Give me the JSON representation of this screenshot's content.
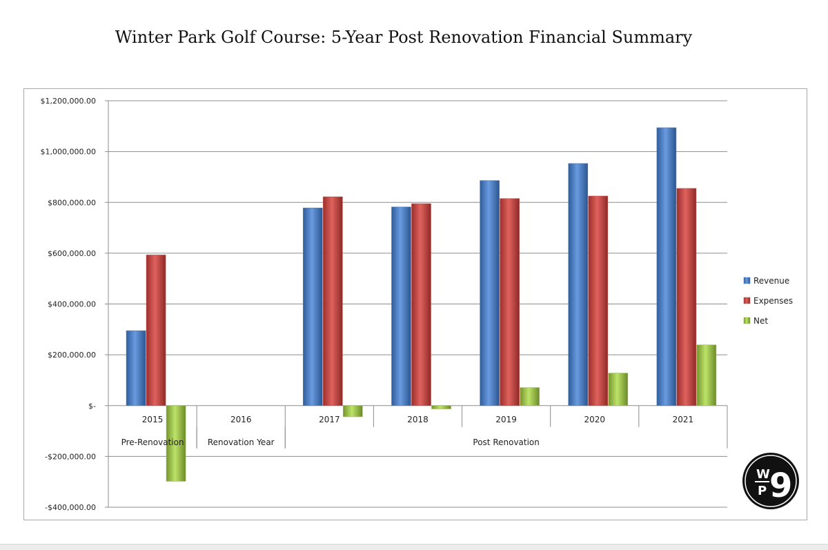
{
  "title": "Winter Park Golf Course: 5-Year Post Renovation Financial Summary",
  "logo": {
    "letters": [
      "W",
      "P",
      "9"
    ]
  },
  "chart_data": {
    "type": "bar",
    "categories": [
      "2015",
      "2016",
      "2017",
      "2018",
      "2019",
      "2020",
      "2021"
    ],
    "category_groups": [
      {
        "label": "Pre-Renovation",
        "categories": [
          "2015"
        ]
      },
      {
        "label": "Renovation Year",
        "categories": [
          "2016"
        ]
      },
      {
        "label": "Post Renovation",
        "categories": [
          "2017",
          "2018",
          "2019",
          "2020",
          "2021"
        ]
      }
    ],
    "series": [
      {
        "name": "Revenue",
        "color": "#4f81bd",
        "values": [
          295000,
          null,
          778000,
          782000,
          886000,
          953000,
          1094000
        ]
      },
      {
        "name": "Expenses",
        "color": "#c0504d",
        "values": [
          593000,
          null,
          822000,
          795000,
          815000,
          825000,
          855000
        ]
      },
      {
        "name": "Net",
        "color": "#9bbb59",
        "values": [
          -298000,
          null,
          -44000,
          -13000,
          71000,
          128000,
          239000
        ]
      }
    ],
    "ylim": [
      -400000,
      1200000
    ],
    "yticks": [
      1200000,
      1000000,
      800000,
      600000,
      400000,
      200000,
      0,
      -200000,
      -400000
    ],
    "ytick_labels": [
      "$1,200,000.00",
      "$1,000,000.00",
      "$800,000.00",
      "$600,000.00",
      "$400,000.00",
      "$200,000.00",
      "$-",
      "-$200,000.00",
      "-$400,000.00"
    ],
    "grid": true,
    "legend": "right"
  }
}
